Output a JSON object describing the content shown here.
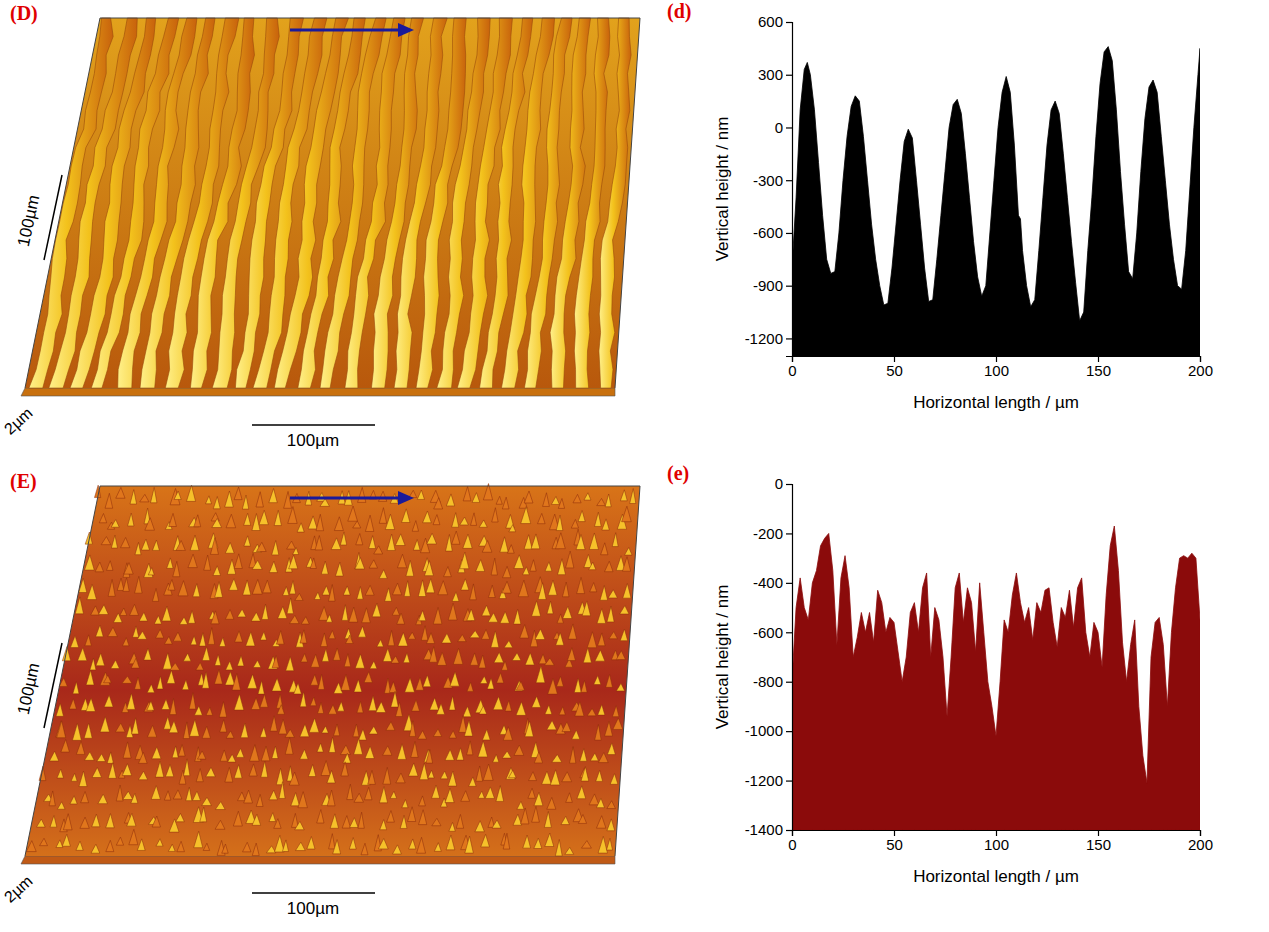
{
  "chart_data": [
    {
      "type": "surface",
      "label": "(D)",
      "scale_bars": [
        "100µm",
        "2µm",
        "100µm"
      ]
    },
    {
      "type": "area",
      "label": "(d)",
      "color": "#000000",
      "xlabel": "Horizontal length / µm",
      "ylabel": "Vertical height / nm",
      "xlim": [
        0,
        200
      ],
      "xticks": [
        0,
        50,
        100,
        150,
        200
      ],
      "ylim": [
        -1300,
        600
      ],
      "yticks": [
        -1200,
        -900,
        -600,
        -300,
        0,
        300,
        600
      ],
      "x": [
        0,
        2,
        4,
        6,
        7.5,
        9,
        11,
        13,
        15,
        17,
        19,
        21,
        23,
        25,
        27,
        29,
        31,
        33,
        35,
        37,
        39,
        41,
        43,
        45,
        47,
        49,
        51,
        53,
        55,
        57,
        59,
        61,
        63,
        65,
        67,
        69,
        71,
        73,
        75,
        77,
        79,
        81,
        83,
        85,
        87,
        89,
        91,
        93,
        95,
        97,
        99,
        101,
        103,
        105,
        107,
        109,
        111,
        112,
        113,
        115,
        117,
        119,
        121,
        123,
        125,
        127,
        129,
        131,
        133,
        135,
        137,
        139,
        141,
        143,
        145,
        147,
        149,
        151,
        153,
        155,
        157,
        159,
        161,
        163,
        165,
        167,
        169,
        171,
        173,
        175,
        177,
        179,
        181,
        183,
        185,
        187,
        189,
        191,
        193,
        195,
        197,
        199,
        200
      ],
      "values": [
        -800,
        -400,
        100,
        330,
        370,
        300,
        100,
        -200,
        -500,
        -750,
        -830,
        -820,
        -600,
        -300,
        -50,
        120,
        180,
        150,
        -50,
        -300,
        -550,
        -750,
        -900,
        -1010,
        -1000,
        -800,
        -550,
        -300,
        -80,
        -10,
        -60,
        -300,
        -550,
        -800,
        -990,
        -980,
        -750,
        -500,
        -250,
        0,
        130,
        160,
        80,
        -150,
        -400,
        -650,
        -850,
        -960,
        -900,
        -600,
        -300,
        0,
        200,
        290,
        200,
        -100,
        -500,
        -520,
        -700,
        -900,
        -1020,
        -980,
        -700,
        -400,
        -100,
        100,
        150,
        80,
        -150,
        -400,
        -650,
        -880,
        -1100,
        -1050,
        -700,
        -400,
        -50,
        250,
        430,
        460,
        380,
        100,
        -250,
        -550,
        -820,
        -860,
        -600,
        -250,
        50,
        230,
        270,
        200,
        -50,
        -300,
        -550,
        -750,
        -900,
        -920,
        -700,
        -350,
        0,
        300,
        450
      ]
    },
    {
      "type": "surface",
      "label": "(E)",
      "scale_bars": [
        "100µm",
        "2µm",
        "100µm"
      ]
    },
    {
      "type": "area",
      "label": "(e)",
      "color": "#8b0b0b",
      "xlabel": "Horizontal length / µm",
      "ylabel": "Vertical height / nm",
      "xlim": [
        0,
        200
      ],
      "xticks": [
        0,
        50,
        100,
        150,
        200
      ],
      "ylim": [
        -1400,
        0
      ],
      "yticks": [
        -1400,
        -1200,
        -1000,
        -800,
        -600,
        -400,
        -200,
        0
      ],
      "x": [
        0,
        2,
        4,
        6,
        8,
        10,
        12,
        14,
        16,
        18,
        20,
        22,
        24,
        26,
        28,
        30,
        32,
        34,
        36,
        38,
        40,
        42,
        44,
        46,
        48,
        50,
        52,
        54,
        56,
        58,
        60,
        62,
        64,
        66,
        68,
        70,
        72,
        74,
        76,
        78,
        80,
        82,
        84,
        86,
        88,
        90,
        92,
        94,
        96,
        98,
        100,
        102,
        104,
        106,
        108,
        110,
        112,
        114,
        116,
        118,
        120,
        122,
        124,
        126,
        128,
        130,
        132,
        134,
        136,
        138,
        140,
        142,
        144,
        146,
        148,
        150,
        152,
        154,
        156,
        158,
        160,
        162,
        164,
        166,
        168,
        170,
        172,
        174,
        176,
        178,
        180,
        182,
        184,
        186,
        188,
        190,
        192,
        194,
        196,
        198,
        200
      ],
      "values": [
        -800,
        -500,
        -380,
        -500,
        -550,
        -400,
        -350,
        -250,
        -220,
        -200,
        -350,
        -650,
        -380,
        -290,
        -420,
        -700,
        -620,
        -520,
        -600,
        -520,
        -640,
        -430,
        -480,
        -600,
        -540,
        -560,
        -680,
        -800,
        -700,
        -520,
        -480,
        -600,
        -420,
        -360,
        -700,
        -500,
        -550,
        -700,
        -940,
        -700,
        -420,
        -360,
        -560,
        -420,
        -480,
        -680,
        -400,
        -600,
        -800,
        -900,
        -1020,
        -800,
        -550,
        -600,
        -450,
        -360,
        -480,
        -560,
        -500,
        -630,
        -480,
        -520,
        -430,
        -420,
        -560,
        -660,
        -500,
        -540,
        -430,
        -580,
        -420,
        -380,
        -600,
        -700,
        -560,
        -600,
        -740,
        -450,
        -250,
        -170,
        -350,
        -640,
        -800,
        -650,
        -550,
        -900,
        -1100,
        -1210,
        -700,
        -560,
        -540,
        -650,
        -900,
        -600,
        -420,
        -300,
        -290,
        -300,
        -280,
        -300,
        -550
      ]
    }
  ]
}
